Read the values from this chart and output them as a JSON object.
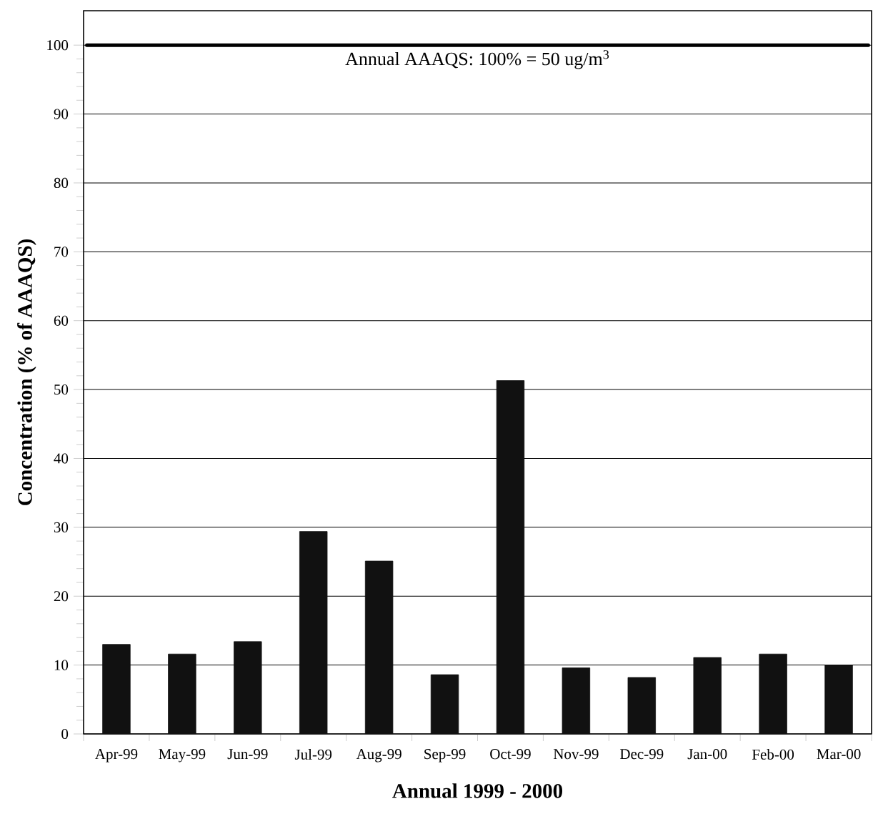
{
  "chart_data": {
    "type": "bar",
    "categories": [
      "Apr-99",
      "May-99",
      "Jun-99",
      "Jul-99",
      "Aug-99",
      "Sep-99",
      "Oct-99",
      "Nov-99",
      "Dec-99",
      "Jan-00",
      "Feb-00",
      "Mar-00"
    ],
    "values": [
      13.0,
      11.6,
      13.4,
      29.4,
      25.1,
      8.6,
      51.3,
      9.6,
      8.2,
      11.1,
      11.6,
      10.0
    ],
    "color": "#111111",
    "xlabel": "Annual 1999 - 2000",
    "ylabel": "Concentration (% of AAAQS)",
    "ylim": [
      0,
      105
    ],
    "yticks": [
      0,
      10,
      20,
      30,
      40,
      50,
      60,
      70,
      80,
      90,
      100
    ],
    "grid": "y",
    "ref_lines": [
      {
        "axis": "y",
        "value": 100,
        "label": "Annual AAAQS: 100% = 50 ug/m$^{3}$",
        "color": "#000000"
      }
    ]
  }
}
